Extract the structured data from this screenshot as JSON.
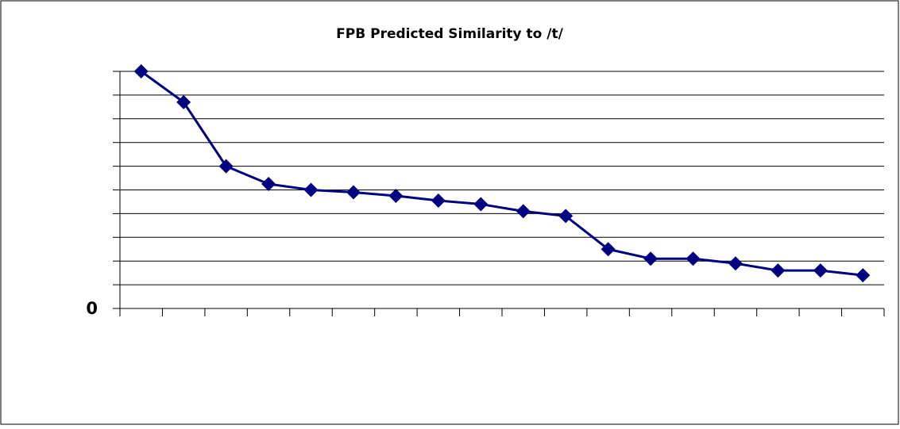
{
  "chart_data": {
    "type": "line",
    "title": "FPB Predicted Similarity to /t/",
    "categories": [
      null,
      null,
      null,
      null,
      null,
      null,
      null,
      null,
      null,
      null,
      null,
      null,
      null,
      null,
      null,
      null,
      null,
      null
    ],
    "series": [
      {
        "name": null,
        "color": "#000080",
        "values": [
          10.0,
          8.7,
          6.0,
          5.25,
          5.0,
          4.9,
          4.75,
          4.55,
          4.4,
          4.1,
          3.9,
          2.5,
          2.1,
          2.1,
          1.9,
          1.6,
          1.6,
          1.4
        ]
      }
    ],
    "ylim": [
      0,
      10
    ],
    "yticks": [
      0,
      {
        "value": 1,
        "label": null
      },
      {
        "value": 2,
        "label": null
      },
      {
        "value": 3,
        "label": null
      },
      {
        "value": 4,
        "label": null
      },
      {
        "value": 5,
        "label": null
      },
      {
        "value": 6,
        "label": null
      },
      {
        "value": 7,
        "label": null
      },
      {
        "value": 8,
        "label": null
      },
      {
        "value": 9,
        "label": null
      },
      {
        "value": 10,
        "label": null
      }
    ],
    "grid": true
  }
}
